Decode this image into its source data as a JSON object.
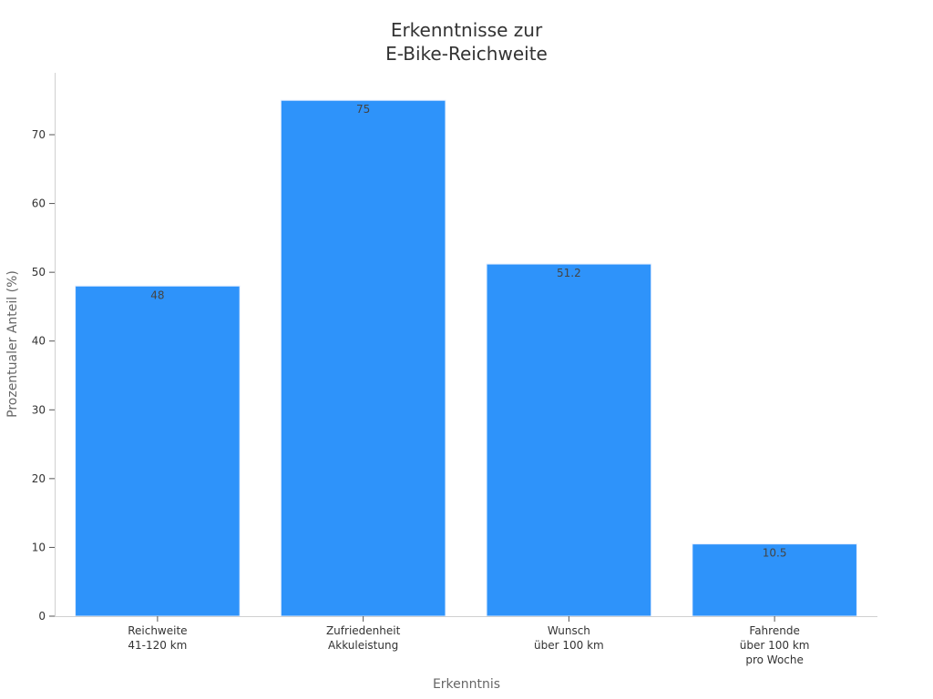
{
  "chart_data": {
    "type": "bar",
    "title": [
      "Erkenntnisse zur",
      "E-Bike-Reichweite"
    ],
    "xlabel": "Erkenntnis",
    "ylabel": "Prozentualer Anteil (%)",
    "categories": [
      [
        "Reichweite",
        "41-120 km"
      ],
      [
        "Zufriedenheit",
        "Akkuleistung"
      ],
      [
        "Wunsch",
        "über 100 km"
      ],
      [
        "Fahrende",
        "über 100 km",
        "pro Woche"
      ]
    ],
    "values": [
      48,
      75,
      51.2,
      10.5
    ],
    "data_labels": [
      "48",
      "75",
      "51.2",
      "10.5"
    ],
    "ylim": [
      0,
      79
    ],
    "yticks": [
      0,
      10,
      20,
      30,
      40,
      50,
      60,
      70
    ],
    "grid": false,
    "bar_color": "#2E93FA",
    "bar_edge_color": "#E3EEFF"
  }
}
